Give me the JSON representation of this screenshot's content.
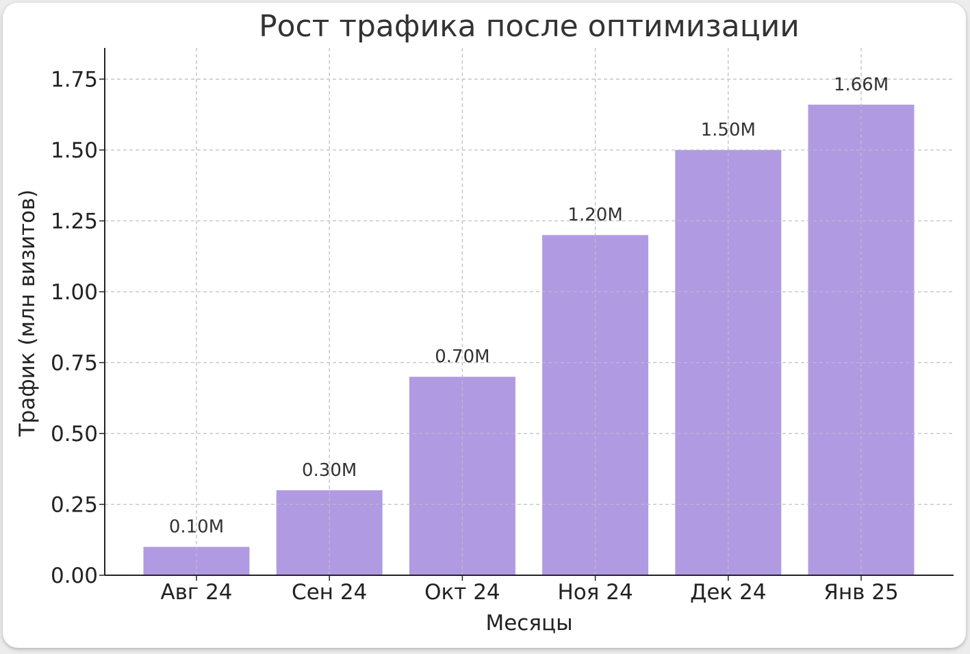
{
  "chart_data": {
    "type": "bar",
    "title": "Рост трафика после оптимизации",
    "xlabel": "Месяцы",
    "ylabel": "Трафик (млн визитов)",
    "categories": [
      "Авг 24",
      "Сен 24",
      "Окт 24",
      "Ноя 24",
      "Дек 24",
      "Янв 25"
    ],
    "values": [
      0.1,
      0.3,
      0.7,
      1.2,
      1.5,
      1.66
    ],
    "data_labels": [
      "0.10M",
      "0.30M",
      "0.70M",
      "1.20M",
      "1.50M",
      "1.66M"
    ],
    "yticks": [
      0.0,
      0.25,
      0.5,
      0.75,
      1.0,
      1.25,
      1.5,
      1.75
    ],
    "ytick_labels": [
      "0.00",
      "0.25",
      "0.50",
      "0.75",
      "1.00",
      "1.25",
      "1.50",
      "1.75"
    ],
    "ylim": [
      0,
      1.86
    ],
    "grid": true,
    "bar_color": "#b09be3"
  }
}
